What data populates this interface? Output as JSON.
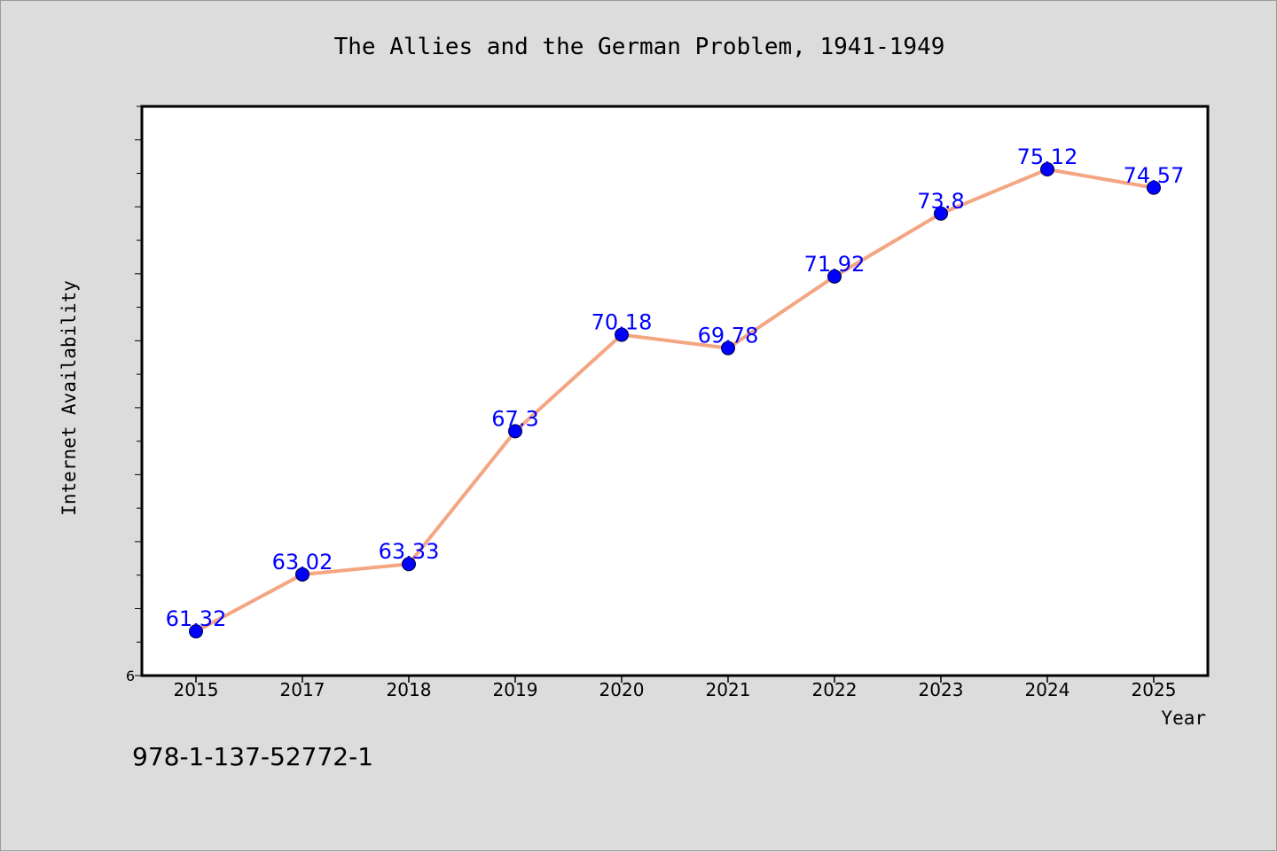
{
  "chart_data": {
    "type": "line",
    "title": "The Allies and the German Problem, 1941-1949",
    "xlabel": "Year",
    "ylabel": "Internet Availability",
    "categories": [
      "2015",
      "2017",
      "2018",
      "2019",
      "2020",
      "2021",
      "2022",
      "2023",
      "2024",
      "2025"
    ],
    "series": [
      {
        "values": [
          61.32,
          63.02,
          63.33,
          67.3,
          70.18,
          69.78,
          71.92,
          73.8,
          75.12,
          74.57
        ],
        "data_labels": [
          "61.32",
          "63.02",
          "63.33",
          "67.3",
          "70.18",
          "69.78",
          "71.92",
          "73.8",
          "75.12",
          "74.57"
        ]
      }
    ],
    "ylim": [
      60,
      77
    ],
    "y_tick_labels": [
      "6"
    ],
    "grid": false,
    "legend": "none",
    "colors": {
      "line": "#f4a582",
      "marker": "#0000ff",
      "marker_edge": "#000033",
      "data_label": "#0000ff",
      "plot_background": "#ffffff",
      "page_background": "#dcdcdc"
    }
  },
  "footnote": "978-1-137-52772-1"
}
